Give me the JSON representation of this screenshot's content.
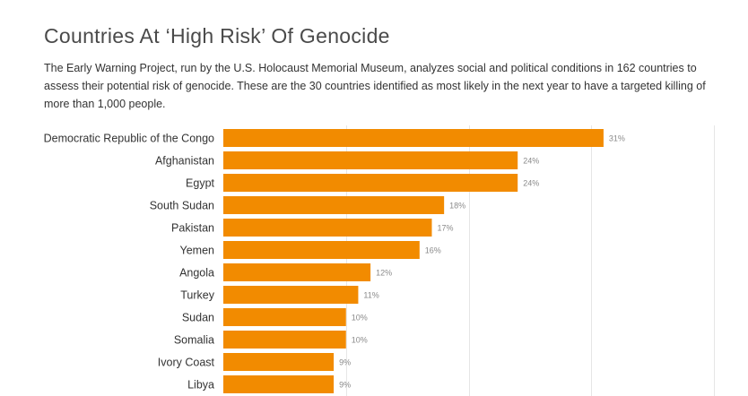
{
  "chart_data": {
    "type": "bar",
    "orientation": "horizontal",
    "title": "Countries At ‘High Risk’ Of Genocide",
    "subtitle": "The Early Warning Project, run by the U.S. Holocaust Memorial Museum, analyzes social and political conditions in 162 countries to assess their potential risk of genocide. These are the 30 countries identified as most likely in the next year to have a targeted killing of more than 1,000 people.",
    "categories": [
      "Democratic Republic of the Congo",
      "Afghanistan",
      "Egypt",
      "South Sudan",
      "Pakistan",
      "Yemen",
      "Angola",
      "Turkey",
      "Sudan",
      "Somalia",
      "Ivory Coast",
      "Libya"
    ],
    "values": [
      31,
      24,
      24,
      18,
      17,
      16,
      12,
      11,
      10,
      10,
      9,
      9
    ],
    "value_labels": [
      "31%",
      "24%",
      "24%",
      "18%",
      "17%",
      "16%",
      "12%",
      "11%",
      "10%",
      "10%",
      "9%",
      "9%"
    ],
    "xlim": [
      0,
      40
    ],
    "grid": true,
    "bar_color": "#f28b00"
  }
}
